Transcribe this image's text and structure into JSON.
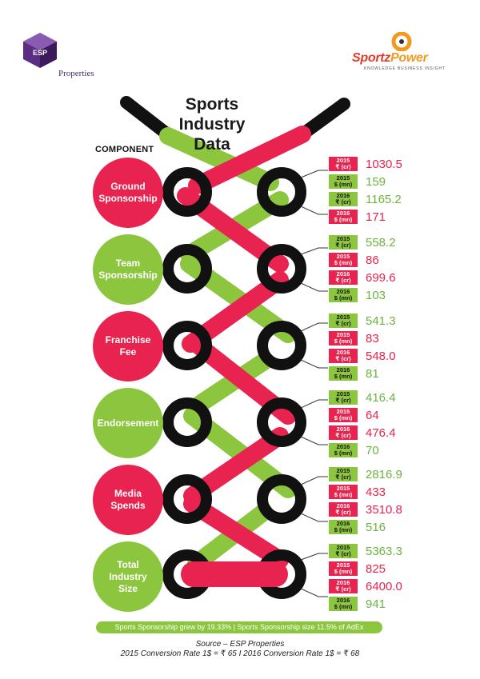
{
  "brand_left": {
    "logo_text": "ESP",
    "name": "Properties"
  },
  "brand_right": {
    "name_part1": "Sportz",
    "name_part2": "Power",
    "tagline": "KNOWLEDGE BUSINESS INSIGHT"
  },
  "title_line1": "Sports Industry",
  "title_line2": "Data",
  "component_heading": "COMPONENT",
  "colors": {
    "red": "#e8234f",
    "green": "#8cc63f",
    "black": "#111111"
  },
  "components": [
    {
      "line1": "Ground",
      "line2": "Sponsorship",
      "color": "red",
      "rows": [
        {
          "year": "2015",
          "unit": "₹ (cr)",
          "value": "1030.5",
          "color": "red"
        },
        {
          "year": "2015",
          "unit": "$ (mn)",
          "value": "159",
          "color": "green"
        },
        {
          "year": "2016",
          "unit": "₹ (cr)",
          "value": "1165.2",
          "color": "green"
        },
        {
          "year": "2016",
          "unit": "$ (mn)",
          "value": "171",
          "color": "red"
        }
      ]
    },
    {
      "line1": "Team",
      "line2": "Sponsorship",
      "color": "green",
      "rows": [
        {
          "year": "2015",
          "unit": "₹ (cr)",
          "value": "558.2",
          "color": "green"
        },
        {
          "year": "2015",
          "unit": "$ (mn)",
          "value": "86",
          "color": "red"
        },
        {
          "year": "2016",
          "unit": "₹ (cr)",
          "value": "699.6",
          "color": "red"
        },
        {
          "year": "2016",
          "unit": "$ (mn)",
          "value": "103",
          "color": "green"
        }
      ]
    },
    {
      "line1": "Franchise",
      "line2": "Fee",
      "color": "red",
      "rows": [
        {
          "year": "2015",
          "unit": "₹ (cr)",
          "value": "541.3",
          "color": "green"
        },
        {
          "year": "2015",
          "unit": "$ (mn)",
          "value": "83",
          "color": "red"
        },
        {
          "year": "2016",
          "unit": "₹ (cr)",
          "value": "548.0",
          "color": "red"
        },
        {
          "year": "2016",
          "unit": "$ (mn)",
          "value": "81",
          "color": "green"
        }
      ]
    },
    {
      "line1": "Endorsement",
      "line2": "",
      "color": "green",
      "rows": [
        {
          "year": "2015",
          "unit": "₹ (cr)",
          "value": "416.4",
          "color": "green"
        },
        {
          "year": "2015",
          "unit": "$ (mn)",
          "value": "64",
          "color": "red"
        },
        {
          "year": "2016",
          "unit": "₹ (cr)",
          "value": "476.4",
          "color": "red"
        },
        {
          "year": "2016",
          "unit": "$ (mn)",
          "value": "70",
          "color": "green"
        }
      ]
    },
    {
      "line1": "Media",
      "line2": "Spends",
      "color": "red",
      "rows": [
        {
          "year": "2015",
          "unit": "₹ (cr)",
          "value": "2816.9",
          "color": "green"
        },
        {
          "year": "2015",
          "unit": "$ (mn)",
          "value": "433",
          "color": "red"
        },
        {
          "year": "2016",
          "unit": "₹ (cr)",
          "value": "3510.8",
          "color": "red"
        },
        {
          "year": "2016",
          "unit": "$ (mn)",
          "value": "516",
          "color": "green"
        }
      ]
    },
    {
      "line1": "Total",
      "line2": "Industry",
      "line3": "Size",
      "color": "green",
      "rows": [
        {
          "year": "2015",
          "unit": "₹ (cr)",
          "value": "5363.3",
          "color": "green"
        },
        {
          "year": "2015",
          "unit": "$ (mn)",
          "value": "825",
          "color": "red"
        },
        {
          "year": "2016",
          "unit": "₹ (cr)",
          "value": "6400.0",
          "color": "red"
        },
        {
          "year": "2016",
          "unit": "$ (mn)",
          "value": "941",
          "color": "green"
        }
      ]
    }
  ],
  "footer_note": "Sports Sponsorship grew by 19.33% | Sports Sponsorship size 11.5% of AdEx",
  "source": "Source – ESP Properties",
  "conversion": "2015 Conversion Rate 1$ = ₹ 65   I   2016 Conversion Rate 1$ = ₹ 68"
}
